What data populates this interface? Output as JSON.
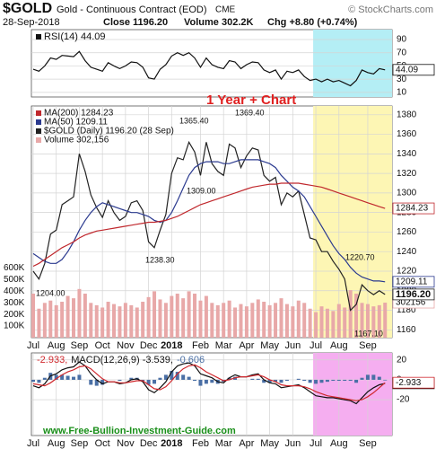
{
  "header": {
    "symbol": "$GOLD",
    "name": "Gold - Continuous Contract (EOD)",
    "exchange": "CME",
    "source": "© StockCharts.com",
    "date": "28-Sep-2018",
    "close": "Close 1196.20",
    "volume": "Volume 302.2K",
    "change": "Chg +8.80 (+0.74%)"
  },
  "footer": "www.Free-Bullion-Investment-Guide.com",
  "chart_data": [
    {
      "type": "line",
      "ylim": [
        3,
        105
      ],
      "yticks": [
        90,
        70,
        50,
        30,
        10
      ],
      "grid": true,
      "highlight": {
        "from": 49,
        "color": "#b4eef5"
      },
      "series": [
        {
          "name": "RSI(14) 44.09",
          "color": "#111111",
          "last_label": "44.09",
          "values": [
            45,
            42,
            50,
            62,
            60,
            66,
            65,
            64,
            72,
            58,
            48,
            45,
            42,
            55,
            50,
            46,
            50,
            56,
            55,
            48,
            32,
            30,
            45,
            52,
            65,
            70,
            66,
            70,
            62,
            48,
            62,
            52,
            48,
            46,
            58,
            56,
            46,
            52,
            56,
            55,
            44,
            40,
            44,
            30,
            42,
            40,
            44,
            34,
            28,
            30,
            26,
            30,
            26,
            28,
            24,
            20,
            28,
            44,
            40,
            38,
            46,
            44.09
          ]
        }
      ]
    },
    {
      "type": "line",
      "title": "1 Year + Chart",
      "ylim": [
        1152,
        1389
      ],
      "yticks": [
        1380,
        1360,
        1340,
        1320,
        1300,
        1280,
        1260,
        1240,
        1220,
        1200,
        1180,
        1160
      ],
      "grid": true,
      "y2lim": [
        0,
        2000000
      ],
      "y2ticks": [
        {
          "value": 600000,
          "label": "600K"
        },
        {
          "value": 500000,
          "label": "500K"
        },
        {
          "value": 400000,
          "label": "400K"
        },
        {
          "value": 300000,
          "label": "300K"
        },
        {
          "value": 200000,
          "label": "200K"
        },
        {
          "value": 100000,
          "label": "100K"
        }
      ],
      "highlight": {
        "from": 49,
        "color": "#fdf6b4"
      },
      "categories": [
        "Jul",
        null,
        null,
        null,
        "Aug",
        null,
        null,
        null,
        "Sep",
        null,
        null,
        null,
        "Oct",
        null,
        null,
        null,
        "Nov",
        null,
        null,
        null,
        "Dec",
        null,
        null,
        null,
        "2018",
        null,
        null,
        null,
        null,
        "Feb",
        null,
        null,
        null,
        "Mar",
        null,
        null,
        null,
        "Apr",
        null,
        null,
        null,
        "May",
        null,
        null,
        null,
        "Jun",
        null,
        null,
        null,
        "Jul",
        null,
        null,
        null,
        "Aug",
        null,
        null,
        null,
        null,
        "Sep",
        null,
        null,
        null
      ],
      "annotations": [
        "1369.40",
        "1365.40",
        "1309.00",
        "1238.30",
        "1220.70",
        "1167.10",
        "1204.00"
      ],
      "series": [
        {
          "name": "Volume 302,156",
          "color": "#e8a8a8",
          "axis": "y2",
          "last_label": "302156",
          "values": [
            380000,
            250000,
            300000,
            320000,
            280000,
            310000,
            360000,
            340000,
            420000,
            380000,
            300000,
            280000,
            260000,
            310000,
            290000,
            270000,
            300000,
            280000,
            260000,
            310000,
            350000,
            400000,
            330000,
            300000,
            360000,
            380000,
            340000,
            400000,
            380000,
            320000,
            360000,
            300000,
            280000,
            300000,
            320000,
            260000,
            290000,
            270000,
            300000,
            330000,
            310000,
            280000,
            300000,
            340000,
            290000,
            270000,
            320000,
            300000,
            250000,
            220000,
            270000,
            250000,
            230000,
            290000,
            260000,
            410000,
            380000,
            300000,
            290000,
            270000,
            280000,
            302156
          ]
        },
        {
          "name": "$GOLD (Daily) 1196.20 (28 Sep)",
          "color": "#222222",
          "last_label": "1196.20",
          "values": [
            1220,
            1212,
            1228,
            1258,
            1262,
            1288,
            1292,
            1296,
            1340,
            1322,
            1298,
            1285,
            1275,
            1292,
            1280,
            1272,
            1276,
            1290,
            1292,
            1282,
            1250,
            1244,
            1262,
            1278,
            1320,
            1336,
            1334,
            1352,
            1342,
            1318,
            1352,
            1330,
            1322,
            1318,
            1350,
            1346,
            1326,
            1338,
            1346,
            1344,
            1318,
            1312,
            1316,
            1288,
            1300,
            1296,
            1302,
            1278,
            1254,
            1252,
            1240,
            1240,
            1230,
            1222,
            1212,
            1180,
            1186,
            1206,
            1200,
            1196,
            1200,
            1196.2
          ]
        },
        {
          "name": "MA(50) 1209.11",
          "color": "#2b3a8f",
          "last_label": "1209.11",
          "values": [
            1238,
            1234,
            1230,
            1228,
            1228,
            1232,
            1240,
            1250,
            1262,
            1272,
            1280,
            1286,
            1290,
            1288,
            1286,
            1284,
            1282,
            1280,
            1280,
            1278,
            1276,
            1272,
            1270,
            1272,
            1280,
            1292,
            1305,
            1318,
            1326,
            1330,
            1332,
            1332,
            1332,
            1330,
            1330,
            1332,
            1334,
            1334,
            1334,
            1334,
            1332,
            1330,
            1326,
            1318,
            1312,
            1306,
            1302,
            1296,
            1286,
            1276,
            1266,
            1256,
            1246,
            1238,
            1232,
            1224,
            1218,
            1214,
            1212,
            1210,
            1210,
            1209.11
          ]
        },
        {
          "name": "MA(200) 1284.23",
          "color": "#c0282d",
          "last_label": "1284.23",
          "values": [
            1225,
            1228,
            1232,
            1236,
            1240,
            1244,
            1247,
            1250,
            1254,
            1257,
            1259,
            1261,
            1262,
            1263,
            1264,
            1265,
            1266,
            1267,
            1268,
            1269,
            1270,
            1270,
            1271,
            1272,
            1274,
            1276,
            1279,
            1282,
            1285,
            1288,
            1290,
            1292,
            1294,
            1296,
            1298,
            1300,
            1302,
            1304,
            1306,
            1307,
            1308,
            1309,
            1309,
            1310,
            1310,
            1310,
            1310,
            1309,
            1308,
            1307,
            1306,
            1304,
            1302,
            1300,
            1298,
            1296,
            1294,
            1292,
            1290,
            1288,
            1286,
            1284.23
          ]
        }
      ]
    },
    {
      "type": "line",
      "ylim": [
        -56,
        27
      ],
      "yticks": [
        20,
        0,
        -20
      ],
      "grid": true,
      "legend_inline": true,
      "highlight": {
        "from": 49,
        "color": "#f5aef0"
      },
      "categories": [
        "Jul",
        null,
        null,
        null,
        "Aug",
        null,
        null,
        null,
        "Sep",
        null,
        null,
        null,
        "Oct",
        null,
        null,
        null,
        "Nov",
        null,
        null,
        null,
        "Dec",
        null,
        null,
        null,
        "2018",
        null,
        null,
        null,
        null,
        "Feb",
        null,
        null,
        null,
        "Mar",
        null,
        null,
        null,
        "Apr",
        null,
        null,
        null,
        "May",
        null,
        null,
        null,
        "Jun",
        null,
        null,
        null,
        "Jul",
        null,
        null,
        null,
        "Aug",
        null,
        null,
        null,
        null,
        "Sep",
        null,
        null,
        null
      ],
      "series": [
        {
          "name": "-0.606",
          "color": "#4a6fa5",
          "kind": "bar",
          "values": [
            -2,
            -3,
            2,
            7,
            5,
            5,
            4,
            3,
            5,
            0,
            -5,
            -6,
            -5,
            0,
            0,
            -1,
            0,
            2,
            2,
            -1,
            -5,
            -4,
            2,
            5,
            9,
            8,
            5,
            3,
            -1,
            -6,
            -4,
            -3,
            -4,
            -2,
            2,
            3,
            0,
            0,
            1,
            1,
            -3,
            -3,
            -2,
            -3,
            -1,
            0,
            1,
            -1,
            -3,
            -4,
            -3,
            -2,
            -1,
            -1,
            -1,
            -1,
            -3,
            2,
            5,
            5,
            3,
            -0.606
          ]
        },
        {
          "name": "MACD(12,26,9) -3.539,",
          "color": "#111111",
          "last_label": "-3.539",
          "values": [
            -6,
            -8,
            -4,
            4,
            6,
            10,
            12,
            13,
            18,
            14,
            6,
            0,
            -4,
            -2,
            -2,
            -4,
            -3,
            0,
            1,
            -2,
            -10,
            -13,
            -8,
            -2,
            8,
            14,
            16,
            17,
            14,
            6,
            4,
            2,
            -2,
            -3,
            2,
            5,
            3,
            3,
            5,
            6,
            0,
            -3,
            -4,
            -8,
            -7,
            -6,
            -5,
            -8,
            -12,
            -16,
            -17,
            -18,
            -18,
            -19,
            -20,
            -21,
            -24,
            -18,
            -12,
            -8,
            -5,
            -3.539
          ]
        },
        {
          "name": "-2.933,",
          "color": "#d0282d",
          "last_label": "-2.933",
          "values": [
            -4,
            -5,
            -6,
            -3,
            1,
            5,
            8,
            10,
            13,
            14,
            11,
            6,
            1,
            -2,
            -2,
            -3,
            -3,
            -2,
            -1,
            -1,
            -5,
            -9,
            -10,
            -7,
            -1,
            6,
            11,
            14,
            15,
            12,
            8,
            5,
            2,
            -1,
            0,
            2,
            3,
            3,
            4,
            5,
            3,
            0,
            -2,
            -5,
            -6,
            -6,
            -6,
            -7,
            -9,
            -12,
            -14,
            -16,
            -17,
            -18,
            -19,
            -20,
            -21,
            -20,
            -17,
            -13,
            -8,
            -2.933
          ]
        }
      ]
    }
  ]
}
